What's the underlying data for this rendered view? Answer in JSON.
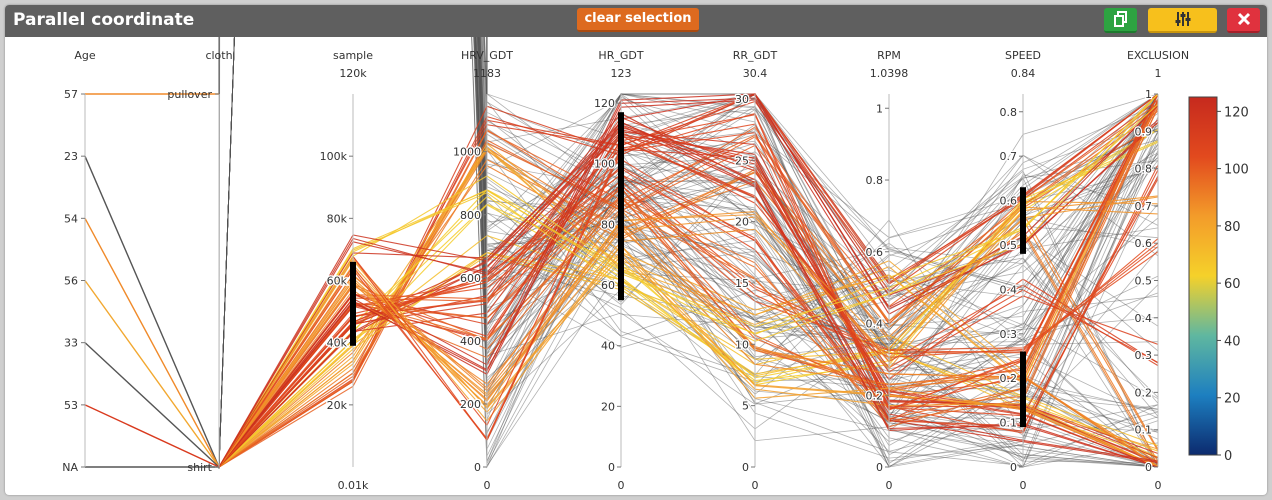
{
  "window": {
    "title": "Parallel coordinate"
  },
  "toolbar": {
    "clear_selection_label": "clear selection",
    "copy_icon": "copy-icon",
    "adjust_icon": "sliders-icon",
    "close_icon": "close-icon"
  },
  "colors": {
    "titlebar": "#5f5f5f",
    "clear_button": "#dd6a1f",
    "copy_button": "#2da341",
    "adjust_button": "#f7c01c",
    "close_button": "#e0323e",
    "unselected_lines": "#555555"
  },
  "chart_data": {
    "type": "parallel-coordinates",
    "axes": [
      {
        "name": "Age",
        "kind": "categorical",
        "categories": [
          "57",
          "23",
          "54",
          "56",
          "33",
          "53",
          "NA"
        ]
      },
      {
        "name": "cloth",
        "kind": "categorical",
        "categories": [
          "pullover",
          "shirt"
        ]
      },
      {
        "name": "sample",
        "kind": "numeric",
        "min_label": "0.01k",
        "max_label": "120k",
        "range": [
          10,
          120000
        ],
        "ticks": [
          20000,
          40000,
          60000,
          80000,
          100000
        ],
        "tick_labels": [
          "20k",
          "40k",
          "60k",
          "80k",
          "100k"
        ],
        "brush": [
          39000,
          66000
        ]
      },
      {
        "name": "HRV_GDT",
        "kind": "numeric",
        "min_label": "0",
        "max_label": "1183",
        "range": [
          0,
          1183
        ],
        "ticks": [
          0,
          200,
          400,
          600,
          800,
          1000
        ],
        "tick_labels": [
          "0",
          "200",
          "400",
          "600",
          "800",
          "1000"
        ]
      },
      {
        "name": "HR_GDT",
        "kind": "numeric",
        "min_label": "0",
        "max_label": "123",
        "range": [
          0,
          123
        ],
        "ticks": [
          0,
          20,
          40,
          60,
          80,
          100,
          120
        ],
        "tick_labels": [
          "0",
          "20",
          "40",
          "60",
          "80",
          "100",
          "120"
        ],
        "brush": [
          55,
          117
        ]
      },
      {
        "name": "RR_GDT",
        "kind": "numeric",
        "min_label": "0",
        "max_label": "30.4",
        "range": [
          0,
          30.4
        ],
        "ticks": [
          0,
          5,
          10,
          15,
          20,
          25,
          30
        ],
        "tick_labels": [
          "0",
          "5",
          "10",
          "15",
          "20",
          "25",
          "30"
        ]
      },
      {
        "name": "RPM",
        "kind": "numeric",
        "min_label": "0",
        "max_label": "1.0398",
        "range": [
          0,
          1.0398
        ],
        "ticks": [
          0,
          0.2,
          0.4,
          0.6,
          0.8,
          1
        ],
        "tick_labels": [
          "0",
          "0.2",
          "0.4",
          "0.6",
          "0.8",
          "1"
        ]
      },
      {
        "name": "SPEED",
        "kind": "numeric",
        "min_label": "0",
        "max_label": "0.84",
        "range": [
          0,
          0.84
        ],
        "ticks": [
          0,
          0.1,
          0.2,
          0.3,
          0.4,
          0.5,
          0.6,
          0.7,
          0.8
        ],
        "tick_labels": [
          "0",
          "0.1",
          "0.2",
          "0.3",
          "0.4",
          "0.5",
          "0.6",
          "0.7",
          "0.8"
        ],
        "brush": [
          [
            0.48,
            0.63
          ],
          [
            0.09,
            0.26
          ]
        ]
      },
      {
        "name": "EXCLUSION",
        "kind": "numeric",
        "min_label": "0",
        "max_label": "1",
        "range": [
          0,
          1
        ],
        "ticks": [
          0,
          0.1,
          0.2,
          0.3,
          0.4,
          0.5,
          0.6,
          0.7,
          0.8,
          0.9,
          1
        ],
        "tick_labels": [
          "0",
          "0.1",
          "0.2",
          "0.3",
          "0.4",
          "0.5",
          "0.6",
          "0.7",
          "0.8",
          "0.9",
          "1"
        ]
      }
    ],
    "colorscale": {
      "range": [
        0,
        125
      ],
      "ticks": [
        0,
        20,
        40,
        60,
        80,
        100,
        120
      ],
      "tick_labels": [
        "0",
        "20",
        "40",
        "60",
        "80",
        "100",
        "120"
      ],
      "stops": [
        "#0c2a6e",
        "#1d7fc0",
        "#5fb7a0",
        "#f5d12a",
        "#f39c2a",
        "#e24a1e",
        "#c62a1e"
      ]
    },
    "highlighted_groups": [
      {
        "age": "57",
        "cloth": "pullover",
        "color": "#f08a2a"
      },
      {
        "age": "23",
        "cloth": "shirt",
        "color": "#555555"
      },
      {
        "age": "54",
        "cloth": "shirt",
        "color": "#f08a2a"
      },
      {
        "age": "56",
        "cloth": "shirt",
        "color": "#f2a830"
      },
      {
        "age": "33",
        "cloth": "shirt",
        "color": "#555555"
      },
      {
        "age": "53",
        "cloth": "shirt",
        "color": "#d93a1e"
      },
      {
        "age": "NA",
        "cloth": "shirt",
        "color": "#555555"
      }
    ],
    "bundles": [
      {
        "values": [
          0.24,
          1120,
          103,
          30,
          0.5,
          0.62,
          1
        ],
        "color_value": 112
      },
      {
        "values": [
          0.24,
          1050,
          88,
          27,
          0.42,
          0.58,
          0.95
        ],
        "color_value": 98
      },
      {
        "values": [
          0.28,
          980,
          75,
          24,
          0.38,
          0.55,
          0.02
        ],
        "color_value": 92
      },
      {
        "values": [
          0.3,
          1000,
          68,
          12,
          0.55,
          0.2,
          1
        ],
        "color_value": 80
      },
      {
        "values": [
          0.34,
          700,
          60,
          8,
          0.35,
          0.15,
          0.05
        ],
        "color_value": 70
      },
      {
        "values": [
          0.36,
          860,
          65,
          7,
          0.3,
          0.6,
          0.9
        ],
        "color_value": 64
      },
      {
        "values": [
          0.38,
          620,
          108,
          26,
          0.18,
          0.12,
          0
        ],
        "color_value": 118
      },
      {
        "values": [
          0.39,
          520,
          112,
          25,
          0.2,
          0.14,
          0.01
        ],
        "color_value": 115
      },
      {
        "values": [
          0.41,
          580,
          100,
          18,
          0.16,
          0.1,
          0.8
        ],
        "color_value": 108
      },
      {
        "values": [
          0.42,
          560,
          96,
          14,
          0.32,
          0.25,
          0.6
        ],
        "color_value": 104
      },
      {
        "values": [
          0.44,
          500,
          90,
          10,
          0.22,
          0.22,
          1
        ],
        "color_value": 100
      },
      {
        "values": [
          0.45,
          420,
          110,
          22,
          0.27,
          0.4,
          0.3
        ],
        "color_value": 110
      },
      {
        "values": [
          0.46,
          380,
          86,
          16,
          0.14,
          0.17,
          0.98
        ],
        "color_value": 96
      },
      {
        "values": [
          0.47,
          300,
          118,
          30,
          0.45,
          0.5,
          0.95
        ],
        "color_value": 122
      },
      {
        "values": [
          0.5,
          250,
          82,
          9,
          0.24,
          0.19,
          0
        ],
        "color_value": 90
      },
      {
        "values": [
          0.52,
          200,
          78,
          20,
          0.3,
          0.58,
          0.7
        ],
        "color_value": 86
      },
      {
        "values": [
          0.53,
          160,
          72,
          6,
          0.2,
          0.12,
          0.02
        ],
        "color_value": 82
      },
      {
        "values": [
          0.55,
          120,
          105,
          28,
          0.16,
          0.23,
          0.99
        ],
        "color_value": 106
      },
      {
        "values": [
          0.57,
          900,
          62,
          11,
          0.5,
          0.52,
          1
        ],
        "color_value": 66
      },
      {
        "values": [
          0.6,
          640,
          115,
          23,
          0.12,
          0.08,
          0
        ],
        "color_value": 120
      }
    ]
  }
}
